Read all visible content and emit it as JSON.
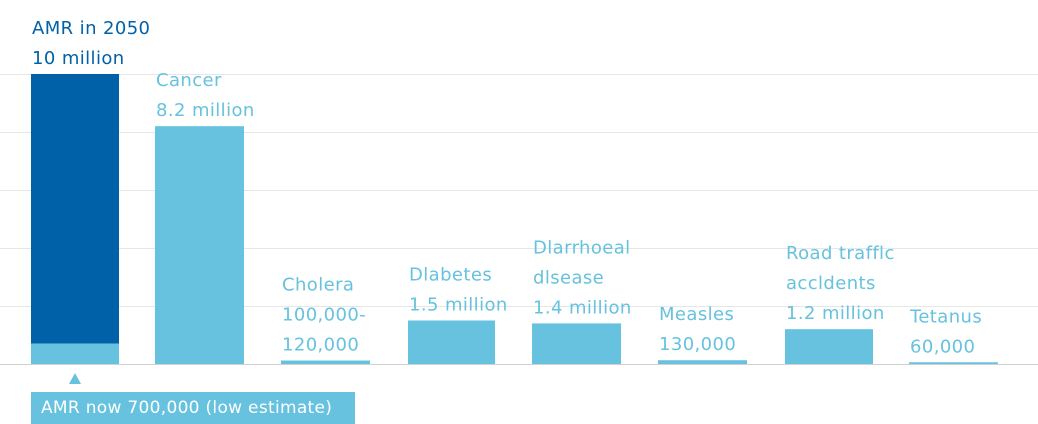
{
  "chart_data": {
    "type": "bar",
    "unit": "deaths per year",
    "ylim": [
      0,
      11000000
    ],
    "grid": true,
    "colors": {
      "base": "#66c2de",
      "highlight": "#0061a8",
      "text_light": "#66c2de",
      "text_dark": "#0061a8",
      "grid": "#e6e6e6"
    },
    "bars": [
      {
        "id": "amr",
        "value": 10000000,
        "base_value": 700000,
        "label_lines": [
          "AMR in 2050",
          "10 million"
        ],
        "label_color": "dark"
      },
      {
        "id": "cancer",
        "value": 8200000,
        "label_lines": [
          "Cancer",
          "8.2 million"
        ],
        "label_color": "light"
      },
      {
        "id": "cholera",
        "value": 120000,
        "label_lines": [
          "Cholera",
          "100,000-",
          "120,000"
        ],
        "label_color": "light"
      },
      {
        "id": "diabetes",
        "value": 1500000,
        "label_lines": [
          "Dlabetes",
          "1.5 million"
        ],
        "label_color": "light"
      },
      {
        "id": "diarrhoeal",
        "value": 1400000,
        "label_lines": [
          "Dlarrhoeal",
          "dlsease",
          "1.4 million"
        ],
        "label_color": "light"
      },
      {
        "id": "measles",
        "value": 130000,
        "label_lines": [
          "Measles",
          "130,000"
        ],
        "label_color": "light"
      },
      {
        "id": "road",
        "value": 1200000,
        "label_lines": [
          "Road trafflc",
          "accldents",
          "1.2 million"
        ],
        "label_color": "light"
      },
      {
        "id": "tetanus",
        "value": 60000,
        "label_lines": [
          "Tetanus",
          "60,000"
        ],
        "label_color": "light"
      }
    ],
    "annotation": {
      "text": "AMR now 700,000 (low estimate)",
      "marker": "up-triangle-icon"
    }
  }
}
